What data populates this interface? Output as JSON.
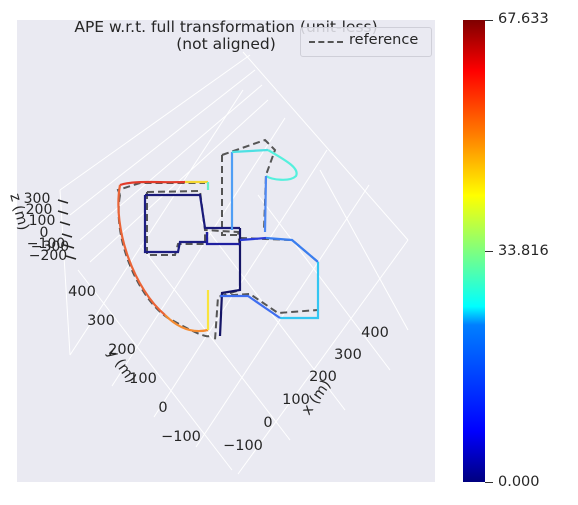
{
  "chart_data": {
    "type": "line",
    "projection": "3d",
    "title": "APE w.r.t. full transformation (unit-less)",
    "subtitle": "(not aligned)",
    "xlabel": "x (m)",
    "ylabel": "y (m)",
    "zlabel": "z (m)",
    "x_ticks": [
      "−100",
      "0",
      "100",
      "200",
      "300",
      "400"
    ],
    "y_ticks": [
      "−100",
      "0",
      "100",
      "200",
      "300",
      "400"
    ],
    "z_ticks": [
      "300",
      "200",
      "100",
      "0",
      "−100",
      "−200",
      "−300"
    ],
    "legend": {
      "entries": [
        "reference"
      ],
      "position": "top-right"
    },
    "colorbar": {
      "colormap": "jet",
      "min": 0.0,
      "max": 67.633,
      "tick_labels": [
        "67.633",
        "33.816",
        "0.000"
      ]
    },
    "grid": true,
    "background": "#eaeaf2",
    "reference_color": "#555555"
  }
}
